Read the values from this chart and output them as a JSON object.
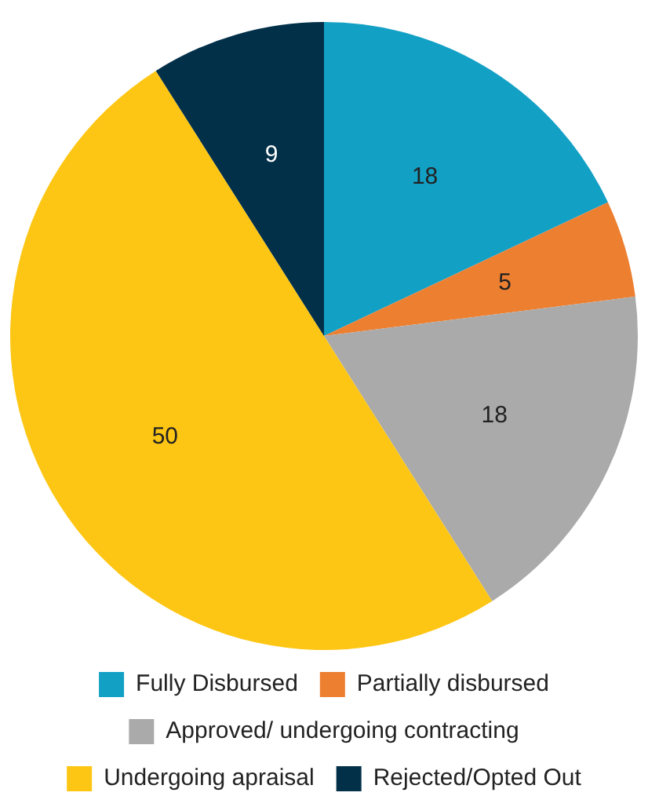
{
  "chart_data": {
    "type": "pie",
    "categories": [
      "Fully Disbursed",
      "Partially disbursed",
      "Approved/ undergoing contracting",
      "Undergoing apraisal",
      "Rejected/Opted Out"
    ],
    "values": [
      18,
      5,
      18,
      50,
      9
    ],
    "colors": [
      "#13a0c5",
      "#ed7f31",
      "#aaaaaa",
      "#fdc614",
      "#023049"
    ],
    "data_labels": true,
    "legend": "bottom"
  }
}
